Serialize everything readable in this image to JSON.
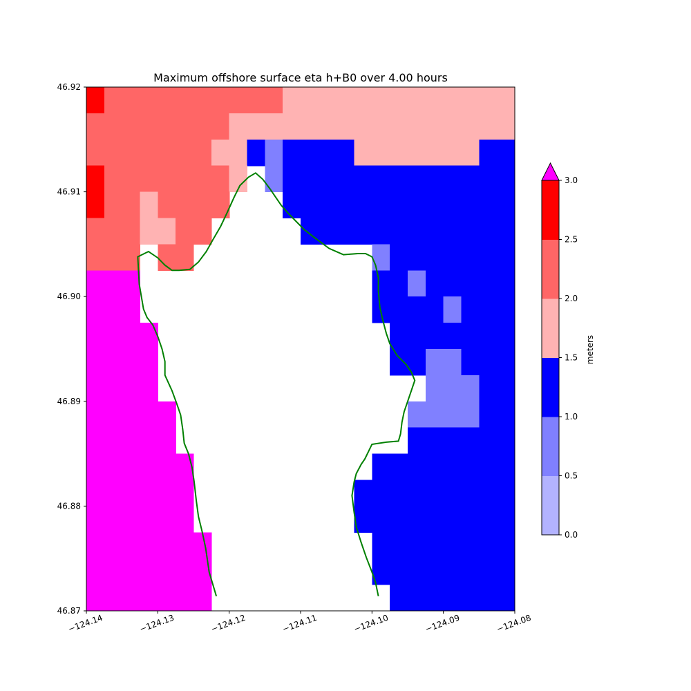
{
  "chart_data": {
    "type": "heatmap",
    "title": "Maximum offshore surface eta h+B0 over 4.00 hours",
    "xlim": [
      -124.14,
      -124.08
    ],
    "ylim": [
      46.87,
      46.92
    ],
    "xticks": [
      -124.14,
      -124.13,
      -124.12,
      -124.11,
      -124.1,
      -124.09,
      -124.08
    ],
    "xtick_labels": [
      "−124.14",
      "−124.13",
      "−124.12",
      "−124.11",
      "−124.10",
      "−124.09",
      "−124.08"
    ],
    "yticks": [
      46.87,
      46.88,
      46.89,
      46.9,
      46.91,
      46.92
    ],
    "ytick_labels": [
      "46.87",
      "46.88",
      "46.89",
      "46.90",
      "46.91",
      "46.92"
    ],
    "grid": false,
    "cells": [
      {
        "x0": -124.14,
        "x1": -124.1375,
        "y0": 46.9175,
        "y1": 46.92,
        "color": "#ff0000"
      },
      {
        "x0": -124.1375,
        "x1": -124.1125,
        "y0": 46.9175,
        "y1": 46.92,
        "color": "#ff6666"
      },
      {
        "x0": -124.1125,
        "x1": -124.08,
        "y0": 46.9175,
        "y1": 46.92,
        "color": "#ffb3b3"
      },
      {
        "x0": -124.14,
        "x1": -124.12,
        "y0": 46.915,
        "y1": 46.9175,
        "color": "#ff6666"
      },
      {
        "x0": -124.12,
        "x1": -124.08,
        "y0": 46.915,
        "y1": 46.9175,
        "color": "#ffb3b3"
      },
      {
        "x0": -124.14,
        "x1": -124.1225,
        "y0": 46.9125,
        "y1": 46.915,
        "color": "#ff6666"
      },
      {
        "x0": -124.1225,
        "x1": -124.1175,
        "y0": 46.9125,
        "y1": 46.915,
        "color": "#ffb3b3"
      },
      {
        "x0": -124.1175,
        "x1": -124.115,
        "y0": 46.9125,
        "y1": 46.915,
        "color": "#0000ff"
      },
      {
        "x0": -124.115,
        "x1": -124.1125,
        "y0": 46.9125,
        "y1": 46.915,
        "color": "#8080ff"
      },
      {
        "x0": -124.1125,
        "x1": -124.1025,
        "y0": 46.9125,
        "y1": 46.915,
        "color": "#0000ff"
      },
      {
        "x0": -124.1025,
        "x1": -124.085,
        "y0": 46.9125,
        "y1": 46.915,
        "color": "#ffb3b3"
      },
      {
        "x0": -124.085,
        "x1": -124.08,
        "y0": 46.9125,
        "y1": 46.915,
        "color": "#0000ff"
      },
      {
        "x0": -124.14,
        "x1": -124.1375,
        "y0": 46.9075,
        "y1": 46.9125,
        "color": "#ff0000"
      },
      {
        "x0": -124.1375,
        "x1": -124.12,
        "y0": 46.91,
        "y1": 46.9125,
        "color": "#ff6666"
      },
      {
        "x0": -124.12,
        "x1": -124.1175,
        "y0": 46.91,
        "y1": 46.9125,
        "color": "#ffb3b3"
      },
      {
        "x0": -124.115,
        "x1": -124.1125,
        "y0": 46.91,
        "y1": 46.9125,
        "color": "#8080ff"
      },
      {
        "x0": -124.1125,
        "x1": -124.08,
        "y0": 46.91,
        "y1": 46.9125,
        "color": "#0000ff"
      },
      {
        "x0": -124.1375,
        "x1": -124.1325,
        "y0": 46.9075,
        "y1": 46.91,
        "color": "#ff6666"
      },
      {
        "x0": -124.1325,
        "x1": -124.13,
        "y0": 46.9075,
        "y1": 46.91,
        "color": "#ffb3b3"
      },
      {
        "x0": -124.13,
        "x1": -124.12,
        "y0": 46.9075,
        "y1": 46.91,
        "color": "#ff6666"
      },
      {
        "x0": -124.1125,
        "x1": -124.08,
        "y0": 46.9075,
        "y1": 46.91,
        "color": "#0000ff"
      },
      {
        "x0": -124.14,
        "x1": -124.1325,
        "y0": 46.905,
        "y1": 46.9075,
        "color": "#ff6666"
      },
      {
        "x0": -124.1325,
        "x1": -124.1275,
        "y0": 46.905,
        "y1": 46.9075,
        "color": "#ffb3b3"
      },
      {
        "x0": -124.1275,
        "x1": -124.1225,
        "y0": 46.905,
        "y1": 46.9075,
        "color": "#ff6666"
      },
      {
        "x0": -124.11,
        "x1": -124.08,
        "y0": 46.905,
        "y1": 46.9075,
        "color": "#0000ff"
      },
      {
        "x0": -124.14,
        "x1": -124.1325,
        "y0": 46.9025,
        "y1": 46.905,
        "color": "#ff6666"
      },
      {
        "x0": -124.13,
        "x1": -124.125,
        "y0": 46.9025,
        "y1": 46.905,
        "color": "#ff6666"
      },
      {
        "x0": -124.1,
        "x1": -124.0975,
        "y0": 46.9025,
        "y1": 46.905,
        "color": "#8080ff"
      },
      {
        "x0": -124.0975,
        "x1": -124.08,
        "y0": 46.9025,
        "y1": 46.905,
        "color": "#0000ff"
      },
      {
        "x0": -124.14,
        "x1": -124.1325,
        "y0": 46.8975,
        "y1": 46.9025,
        "color": "#ff00ff"
      },
      {
        "x0": -124.1,
        "x1": -124.095,
        "y0": 46.9,
        "y1": 46.9025,
        "color": "#0000ff"
      },
      {
        "x0": -124.095,
        "x1": -124.0925,
        "y0": 46.9,
        "y1": 46.9025,
        "color": "#8080ff"
      },
      {
        "x0": -124.0925,
        "x1": -124.08,
        "y0": 46.9,
        "y1": 46.9025,
        "color": "#0000ff"
      },
      {
        "x0": -124.1,
        "x1": -124.09,
        "y0": 46.8975,
        "y1": 46.9,
        "color": "#0000ff"
      },
      {
        "x0": -124.09,
        "x1": -124.0875,
        "y0": 46.8975,
        "y1": 46.9,
        "color": "#8080ff"
      },
      {
        "x0": -124.0875,
        "x1": -124.08,
        "y0": 46.8975,
        "y1": 46.9,
        "color": "#0000ff"
      },
      {
        "x0": -124.14,
        "x1": -124.13,
        "y0": 46.89,
        "y1": 46.8975,
        "color": "#ff00ff"
      },
      {
        "x0": -124.0975,
        "x1": -124.08,
        "y0": 46.895,
        "y1": 46.8975,
        "color": "#0000ff"
      },
      {
        "x0": -124.0975,
        "x1": -124.0925,
        "y0": 46.8925,
        "y1": 46.895,
        "color": "#0000ff"
      },
      {
        "x0": -124.0925,
        "x1": -124.0875,
        "y0": 46.8925,
        "y1": 46.895,
        "color": "#8080ff"
      },
      {
        "x0": -124.0875,
        "x1": -124.08,
        "y0": 46.8925,
        "y1": 46.895,
        "color": "#0000ff"
      },
      {
        "x0": -124.0925,
        "x1": -124.085,
        "y0": 46.89,
        "y1": 46.8925,
        "color": "#8080ff"
      },
      {
        "x0": -124.085,
        "x1": -124.08,
        "y0": 46.89,
        "y1": 46.8925,
        "color": "#0000ff"
      },
      {
        "x0": -124.14,
        "x1": -124.1275,
        "y0": 46.885,
        "y1": 46.89,
        "color": "#ff00ff"
      },
      {
        "x0": -124.095,
        "x1": -124.085,
        "y0": 46.8875,
        "y1": 46.89,
        "color": "#8080ff"
      },
      {
        "x0": -124.085,
        "x1": -124.08,
        "y0": 46.8875,
        "y1": 46.89,
        "color": "#0000ff"
      },
      {
        "x0": -124.095,
        "x1": -124.08,
        "y0": 46.885,
        "y1": 46.8875,
        "color": "#0000ff"
      },
      {
        "x0": -124.14,
        "x1": -124.125,
        "y0": 46.8775,
        "y1": 46.885,
        "color": "#ff00ff"
      },
      {
        "x0": -124.1,
        "x1": -124.08,
        "y0": 46.8825,
        "y1": 46.885,
        "color": "#0000ff"
      },
      {
        "x0": -124.1025,
        "x1": -124.08,
        "y0": 46.8775,
        "y1": 46.8825,
        "color": "#0000ff"
      },
      {
        "x0": -124.14,
        "x1": -124.1225,
        "y0": 46.87,
        "y1": 46.8775,
        "color": "#ff00ff"
      },
      {
        "x0": -124.1,
        "x1": -124.08,
        "y0": 46.8725,
        "y1": 46.8775,
        "color": "#0000ff"
      },
      {
        "x0": -124.0975,
        "x1": -124.08,
        "y0": 46.87,
        "y1": 46.8725,
        "color": "#0000ff"
      }
    ],
    "coastline": {
      "color": "#008000",
      "points": [
        [
          -124.1218,
          46.8714
        ],
        [
          -124.1228,
          46.8737
        ],
        [
          -124.1233,
          46.876
        ],
        [
          -124.1238,
          46.8776
        ],
        [
          -124.1243,
          46.879
        ],
        [
          -124.1246,
          46.8805
        ],
        [
          -124.1249,
          46.8823
        ],
        [
          -124.1252,
          46.8837
        ],
        [
          -124.1257,
          46.885
        ],
        [
          -124.1263,
          46.886
        ],
        [
          -124.1265,
          46.8873
        ],
        [
          -124.1268,
          46.8887
        ],
        [
          -124.1273,
          46.8897
        ],
        [
          -124.128,
          46.891
        ],
        [
          -124.129,
          46.8925
        ],
        [
          -124.129,
          46.8938
        ],
        [
          -124.1294,
          46.895
        ],
        [
          -124.13,
          46.8962
        ],
        [
          -124.1307,
          46.8973
        ],
        [
          -124.1315,
          46.898
        ],
        [
          -124.132,
          46.8988
        ],
        [
          -124.1323,
          46.9
        ],
        [
          -124.1326,
          46.9012
        ],
        [
          -124.1327,
          46.9025
        ],
        [
          -124.1328,
          46.9038
        ],
        [
          -124.1313,
          46.9043
        ],
        [
          -124.13,
          46.9037
        ],
        [
          -124.129,
          46.903
        ],
        [
          -124.128,
          46.9025
        ],
        [
          -124.127,
          46.9025
        ],
        [
          -124.1255,
          46.9026
        ],
        [
          -124.1243,
          46.9033
        ],
        [
          -124.1232,
          46.9043
        ],
        [
          -124.1223,
          46.9054
        ],
        [
          -124.1212,
          46.9067
        ],
        [
          -124.1203,
          46.908
        ],
        [
          -124.1193,
          46.9095
        ],
        [
          -124.1185,
          46.9106
        ],
        [
          -124.1173,
          46.9114
        ],
        [
          -124.1163,
          46.9118
        ],
        [
          -124.1153,
          46.9112
        ],
        [
          -124.1143,
          46.9103
        ],
        [
          -124.1135,
          46.9095
        ],
        [
          -124.1127,
          46.9087
        ],
        [
          -124.1118,
          46.908
        ],
        [
          -124.1108,
          46.9073
        ],
        [
          -124.1095,
          46.9064
        ],
        [
          -124.108,
          46.9056
        ],
        [
          -124.106,
          46.9046
        ],
        [
          -124.104,
          46.904
        ],
        [
          -124.102,
          46.9041
        ],
        [
          -124.1009,
          46.9041
        ],
        [
          -124.1,
          46.9038
        ],
        [
          -124.0995,
          46.903
        ],
        [
          -124.0991,
          46.9018
        ],
        [
          -124.0991,
          46.9005
        ],
        [
          -124.0989,
          46.899
        ],
        [
          -124.0985,
          46.8978
        ],
        [
          -124.098,
          46.8965
        ],
        [
          -124.0975,
          46.8955
        ],
        [
          -124.0965,
          46.8944
        ],
        [
          -124.0952,
          46.8935
        ],
        [
          -124.0945,
          46.8928
        ],
        [
          -124.094,
          46.892
        ],
        [
          -124.0945,
          46.891
        ],
        [
          -124.095,
          46.89
        ],
        [
          -124.0955,
          46.889
        ],
        [
          -124.0958,
          46.888
        ],
        [
          -124.096,
          46.8869
        ],
        [
          -124.0963,
          46.8862
        ],
        [
          -124.098,
          46.8861
        ],
        [
          -124.1,
          46.8859
        ],
        [
          -124.1005,
          46.8852
        ],
        [
          -124.101,
          46.8845
        ],
        [
          -124.1015,
          46.884
        ],
        [
          -124.1022,
          46.8831
        ],
        [
          -124.1025,
          46.8823
        ],
        [
          -124.1028,
          46.881
        ],
        [
          -124.1025,
          46.8794
        ],
        [
          -124.1022,
          46.878
        ],
        [
          -124.1015,
          46.8765
        ],
        [
          -124.1008,
          46.8751
        ],
        [
          -124.1,
          46.8737
        ],
        [
          -124.0995,
          46.8727
        ],
        [
          -124.0991,
          46.8714
        ]
      ]
    },
    "colorbar": {
      "label": "meters",
      "ticks": [
        0.0,
        0.5,
        1.0,
        1.5,
        2.0,
        2.5,
        3.0
      ],
      "tick_labels": [
        "0.0",
        "0.5",
        "1.0",
        "1.5",
        "2.0",
        "2.5",
        "3.0"
      ],
      "levels": [
        0.0,
        0.5,
        1.0,
        1.5,
        2.0,
        2.5,
        3.0
      ],
      "colors": [
        "#b3b3ff",
        "#8080ff",
        "#0000ff",
        "#ffb3b3",
        "#ff6666",
        "#ff0000"
      ],
      "extend_max_color": "#ff00ff"
    }
  }
}
